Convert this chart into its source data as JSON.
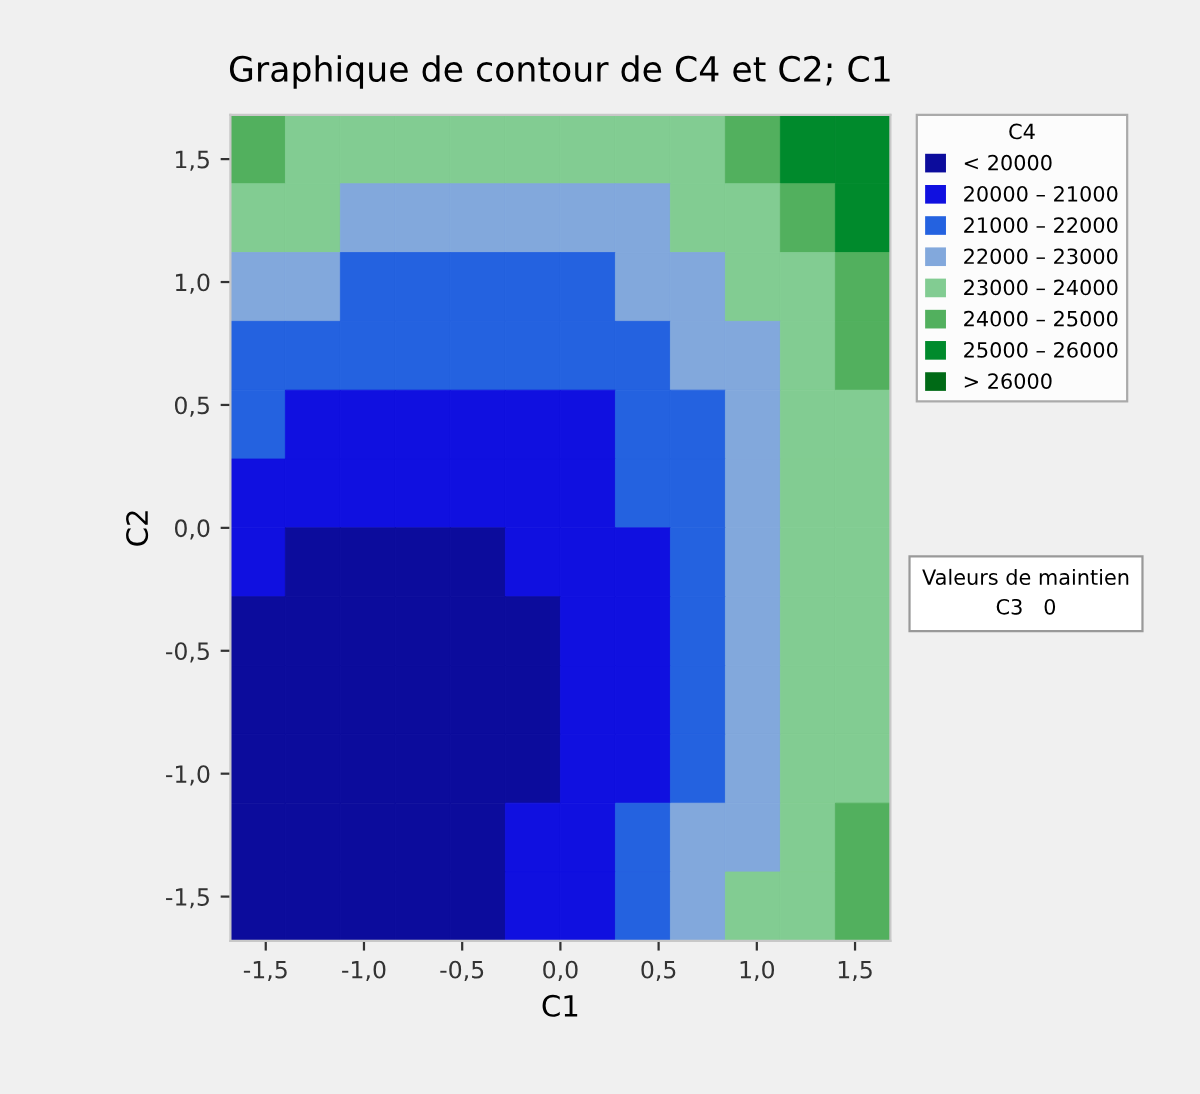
{
  "chart_data": {
    "type": "heatmap",
    "title": "Graphique de contour de C4 et C2; C1",
    "xlabel": "C1",
    "ylabel": "C2",
    "clabel": "C4",
    "annotations": [
      "Valeurs de maintien",
      "C3   0"
    ],
    "cells": [
      [
        24500,
        23500,
        23500,
        23500,
        23500,
        23500,
        23500,
        23500,
        23500,
        24500,
        25500,
        25500
      ],
      [
        23500,
        23500,
        22500,
        22500,
        22500,
        22500,
        22500,
        22500,
        23500,
        23500,
        24500,
        25500
      ],
      [
        22500,
        22500,
        21500,
        21500,
        21500,
        21500,
        21500,
        22500,
        22500,
        23500,
        23500,
        24500
      ],
      [
        21500,
        21500,
        21500,
        21500,
        21500,
        21500,
        21500,
        21500,
        22500,
        22500,
        23500,
        24500
      ],
      [
        21500,
        20500,
        20500,
        20500,
        20500,
        20500,
        20500,
        21500,
        21500,
        22500,
        23500,
        23500
      ],
      [
        20500,
        20500,
        20500,
        20500,
        20500,
        20500,
        20500,
        21500,
        21500,
        22500,
        23500,
        23500
      ],
      [
        20500,
        19500,
        19500,
        19500,
        19500,
        20500,
        20500,
        20500,
        21500,
        22500,
        23500,
        23500
      ],
      [
        19500,
        19500,
        19500,
        19500,
        19500,
        19500,
        20500,
        20500,
        21500,
        22500,
        23500,
        23500
      ],
      [
        19500,
        19500,
        19500,
        19500,
        19500,
        19500,
        20500,
        20500,
        21500,
        22500,
        23500,
        23500
      ],
      [
        19500,
        19500,
        19500,
        19500,
        19500,
        19500,
        20500,
        20500,
        21500,
        22500,
        23500,
        23500
      ],
      [
        19500,
        19500,
        19500,
        19500,
        19500,
        20500,
        20500,
        21500,
        22500,
        22500,
        23500,
        24500
      ],
      [
        19500,
        19500,
        19500,
        19500,
        19500,
        20500,
        20500,
        21500,
        22500,
        23500,
        23500,
        24500
      ]
    ],
    "cticks": [
      {
        "value": 19500,
        "label": "< 20000"
      },
      {
        "value": 20500,
        "label": "20000 – 21000"
      },
      {
        "value": 21500,
        "label": "21000 – 22000"
      },
      {
        "value": 22500,
        "label": "22000 – 23000"
      },
      {
        "value": 23500,
        "label": "23000 – 24000"
      },
      {
        "value": 24500,
        "label": "24000 – 25000"
      },
      {
        "value": 25500,
        "label": "25000 – 26000"
      },
      {
        "value": 26500,
        "label": "> 26000"
      }
    ],
    "colors": [
      "#0c0c9c",
      "#1010e0",
      "#2462e0",
      "#82a8dc",
      "#82cc92",
      "#52b05e",
      "#008a2c",
      "#006a16"
    ],
    "xlim": [
      -1.68,
      1.68
    ],
    "ylim": [
      -1.68,
      1.68
    ],
    "xticks": [
      {
        "value": -1.5,
        "label": "-1,5"
      },
      {
        "value": -1.0,
        "label": "-1,0"
      },
      {
        "value": -0.5,
        "label": "-0,5"
      },
      {
        "value": 0.0,
        "label": "0,0"
      },
      {
        "value": 0.5,
        "label": "0,5"
      },
      {
        "value": 1.0,
        "label": "1,0"
      },
      {
        "value": 1.5,
        "label": "1,5"
      }
    ],
    "yticks": [
      {
        "value": -1.5,
        "label": "-1,5"
      },
      {
        "value": -1.0,
        "label": "-1,0"
      },
      {
        "value": -0.5,
        "label": "-0,5"
      },
      {
        "value": 0.0,
        "label": "0,0"
      },
      {
        "value": 0.5,
        "label": "0,5"
      },
      {
        "value": 1.0,
        "label": "1,0"
      },
      {
        "value": 1.5,
        "label": "1,5"
      }
    ],
    "grid": false
  }
}
